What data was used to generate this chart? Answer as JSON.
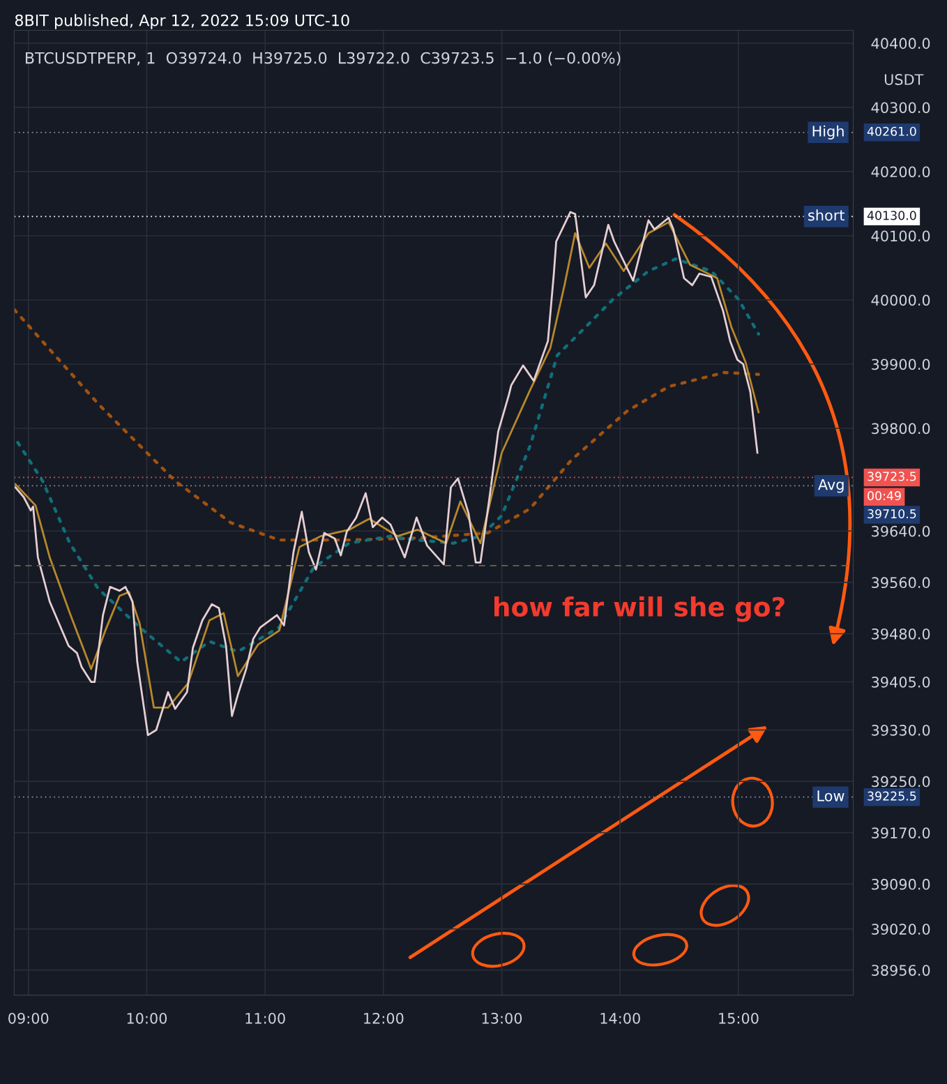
{
  "chart_data": {
    "type": "line",
    "title": "8BIT published, Apr 12, 2022 15:09 UTC-10",
    "subtitle": "BTCUSDTPERP, 1  O39724.0  H39725.0  L39722.0  C39723.5  −1.0 (−0.00%)",
    "ylabel": "USDT",
    "xlim": [
      8.88,
      15.97
    ],
    "xticks": [
      {
        "value": 9,
        "label": "09:00"
      },
      {
        "value": 10,
        "label": "10:00"
      },
      {
        "value": 11,
        "label": "11:00"
      },
      {
        "value": 12,
        "label": "12:00"
      },
      {
        "value": 13,
        "label": "13:00"
      },
      {
        "value": 14,
        "label": "14:00"
      },
      {
        "value": 15,
        "label": "15:00"
      }
    ],
    "ylim": [
      38917,
      40420
    ],
    "yticks": [
      {
        "value": 40400,
        "label": "40400.0"
      },
      {
        "value": 40300,
        "label": "40300.0"
      },
      {
        "value": 40200,
        "label": "40200.0"
      },
      {
        "value": 40100,
        "label": "40100.0"
      },
      {
        "value": 40000,
        "label": "40000.0"
      },
      {
        "value": 39900,
        "label": "39900.0"
      },
      {
        "value": 39800,
        "label": "39800.0"
      },
      {
        "value": 39640,
        "label": "39640.0"
      },
      {
        "value": 39560,
        "label": "39560.0"
      },
      {
        "value": 39480,
        "label": "39480.0"
      },
      {
        "value": 39405,
        "label": "39405.0"
      },
      {
        "value": 39330,
        "label": "39330.0"
      },
      {
        "value": 39250,
        "label": "39250.0"
      },
      {
        "value": 39170,
        "label": "39170.0"
      },
      {
        "value": 39090,
        "label": "39090.0"
      },
      {
        "value": 39020,
        "label": "39020.0"
      },
      {
        "value": 38956,
        "label": "38956.0"
      }
    ],
    "grid": true,
    "series": [
      {
        "color": "#a0520f",
        "line_style": "dotted",
        "x": [
          8.88,
          9.59,
          10.24,
          10.71,
          11.12,
          11.71,
          12.29,
          12.88,
          13.24,
          13.59,
          14.06,
          14.41,
          14.88,
          15.17
        ],
        "values": [
          39985,
          39838,
          39718,
          39653,
          39626,
          39626,
          39629,
          39637,
          39675,
          39751,
          39827,
          39865,
          39887,
          39884
        ]
      },
      {
        "color": "#0f6f7a",
        "line_style": "dotted",
        "x": [
          8.91,
          9.12,
          9.35,
          9.59,
          9.94,
          10.29,
          10.53,
          10.77,
          11.12,
          11.41,
          11.71,
          12.06,
          12.29,
          12.59,
          12.82,
          13.0,
          13.24,
          13.47,
          13.71,
          13.94,
          14.24,
          14.47,
          14.77,
          15.0,
          15.17
        ],
        "values": [
          39778,
          39718,
          39621,
          39550,
          39490,
          39436,
          39468,
          39452,
          39490,
          39583,
          39621,
          39632,
          39626,
          39621,
          39632,
          39664,
          39773,
          39914,
          39958,
          40001,
          40045,
          40064,
          40045,
          40001,
          39947
        ]
      },
      {
        "color": "#b8892a",
        "line_style": "solid",
        "x": [
          8.89,
          9.06,
          9.18,
          9.35,
          9.53,
          9.65,
          9.77,
          9.85,
          9.94,
          10.06,
          10.18,
          10.35,
          10.53,
          10.65,
          10.77,
          10.94,
          11.12,
          11.29,
          11.47,
          11.71,
          11.88,
          12.12,
          12.29,
          12.53,
          12.65,
          12.82,
          13.0,
          13.24,
          13.41,
          13.53,
          13.62,
          13.74,
          13.88,
          14.03,
          14.24,
          14.41,
          14.59,
          14.82,
          14.94,
          15.06,
          15.17
        ],
        "values": [
          39713,
          39680,
          39599,
          39512,
          39425,
          39485,
          39539,
          39545,
          39496,
          39365,
          39365,
          39403,
          39501,
          39512,
          39414,
          39463,
          39485,
          39615,
          39632,
          39642,
          39659,
          39632,
          39642,
          39621,
          39686,
          39621,
          39762,
          39860,
          39925,
          40023,
          40104,
          40050,
          40088,
          40045,
          40104,
          40121,
          40055,
          40034,
          39958,
          39903,
          39825
        ]
      },
      {
        "color": "#e6cfd3",
        "line_style": "solid",
        "x": [
          8.89,
          8.96,
          9.02,
          9.04,
          9.08,
          9.18,
          9.34,
          9.41,
          9.45,
          9.53,
          9.56,
          9.63,
          9.69,
          9.77,
          9.82,
          9.88,
          9.92,
          10.01,
          10.08,
          10.18,
          10.24,
          10.34,
          10.39,
          10.47,
          10.55,
          10.61,
          10.67,
          10.72,
          10.77,
          10.84,
          10.9,
          10.96,
          11.1,
          11.16,
          11.24,
          11.31,
          11.37,
          11.43,
          11.5,
          11.59,
          11.64,
          11.69,
          11.77,
          11.85,
          11.91,
          11.99,
          12.06,
          12.18,
          12.28,
          12.37,
          12.51,
          12.57,
          12.63,
          12.72,
          12.78,
          12.82,
          12.9,
          12.97,
          13.06,
          13.08,
          13.18,
          13.27,
          13.39,
          13.44,
          13.46,
          13.58,
          13.62,
          13.71,
          13.78,
          13.9,
          13.95,
          14.11,
          14.24,
          14.29,
          14.41,
          14.45,
          14.54,
          14.61,
          14.67,
          14.77,
          14.87,
          14.93,
          14.99,
          15.04,
          15.1,
          15.16
        ],
        "values": [
          39708,
          39693,
          39672,
          39678,
          39599,
          39530,
          39461,
          39450,
          39428,
          39405,
          39405,
          39509,
          39553,
          39547,
          39553,
          39530,
          39436,
          39322,
          39330,
          39389,
          39363,
          39389,
          39458,
          39501,
          39526,
          39520,
          39461,
          39352,
          39385,
          39425,
          39472,
          39490,
          39509,
          39493,
          39607,
          39670,
          39607,
          39580,
          39637,
          39628,
          39602,
          39639,
          39661,
          39699,
          39646,
          39661,
          39650,
          39599,
          39661,
          39617,
          39588,
          39708,
          39722,
          39667,
          39591,
          39591,
          39697,
          39795,
          39852,
          39867,
          39898,
          39874,
          39936,
          40041,
          40091,
          40137,
          40134,
          40004,
          40023,
          40117,
          40091,
          40030,
          40124,
          40110,
          40128,
          40110,
          40034,
          40023,
          40041,
          40036,
          39983,
          39936,
          39907,
          39900,
          39857,
          39762
        ]
      }
    ],
    "ref_lines": [
      {
        "axis": "y",
        "value": 40261.0,
        "label": "High",
        "color": "#8a8f9c",
        "line_style": "dotted"
      },
      {
        "axis": "y",
        "value": 40130.0,
        "label": "short",
        "color": "#ffffff",
        "line_style": "dotted"
      },
      {
        "axis": "y",
        "value": 39723.5,
        "label": null,
        "color": "#f05350",
        "line_style": "dotted"
      },
      {
        "axis": "y",
        "value": 39710.5,
        "label": "Avg",
        "color": "#8a8f9c",
        "line_style": "dotted"
      },
      {
        "axis": "y",
        "value": 39586.0,
        "label": null,
        "color": "#6b6b3a",
        "line_style": "dashed"
      },
      {
        "axis": "y",
        "value": 39225.5,
        "label": "Low",
        "color": "#8a8f9c",
        "line_style": "dotted"
      }
    ],
    "annotations": [
      "how far will she go?",
      "40261.0",
      "40130.0",
      "39723.5",
      "00:49",
      "39710.5",
      "39225.5"
    ]
  }
}
